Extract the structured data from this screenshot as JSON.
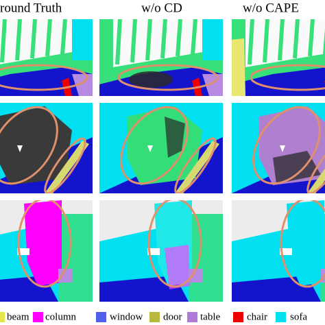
{
  "headers": [
    "round Truth",
    "w/o CD",
    "w/o CAPE"
  ],
  "legend": [
    {
      "label": "beam",
      "color": "#e6e64a"
    },
    {
      "label": "column",
      "color": "#ff00ff"
    },
    {
      "label": "window",
      "color": "#5060e8"
    },
    {
      "label": "door",
      "color": "#b8b840"
    },
    {
      "label": "table",
      "color": "#b07ad8"
    },
    {
      "label": "chair",
      "color": "#ee0000"
    },
    {
      "label": "sofa",
      "color": "#00e0f0"
    }
  ]
}
